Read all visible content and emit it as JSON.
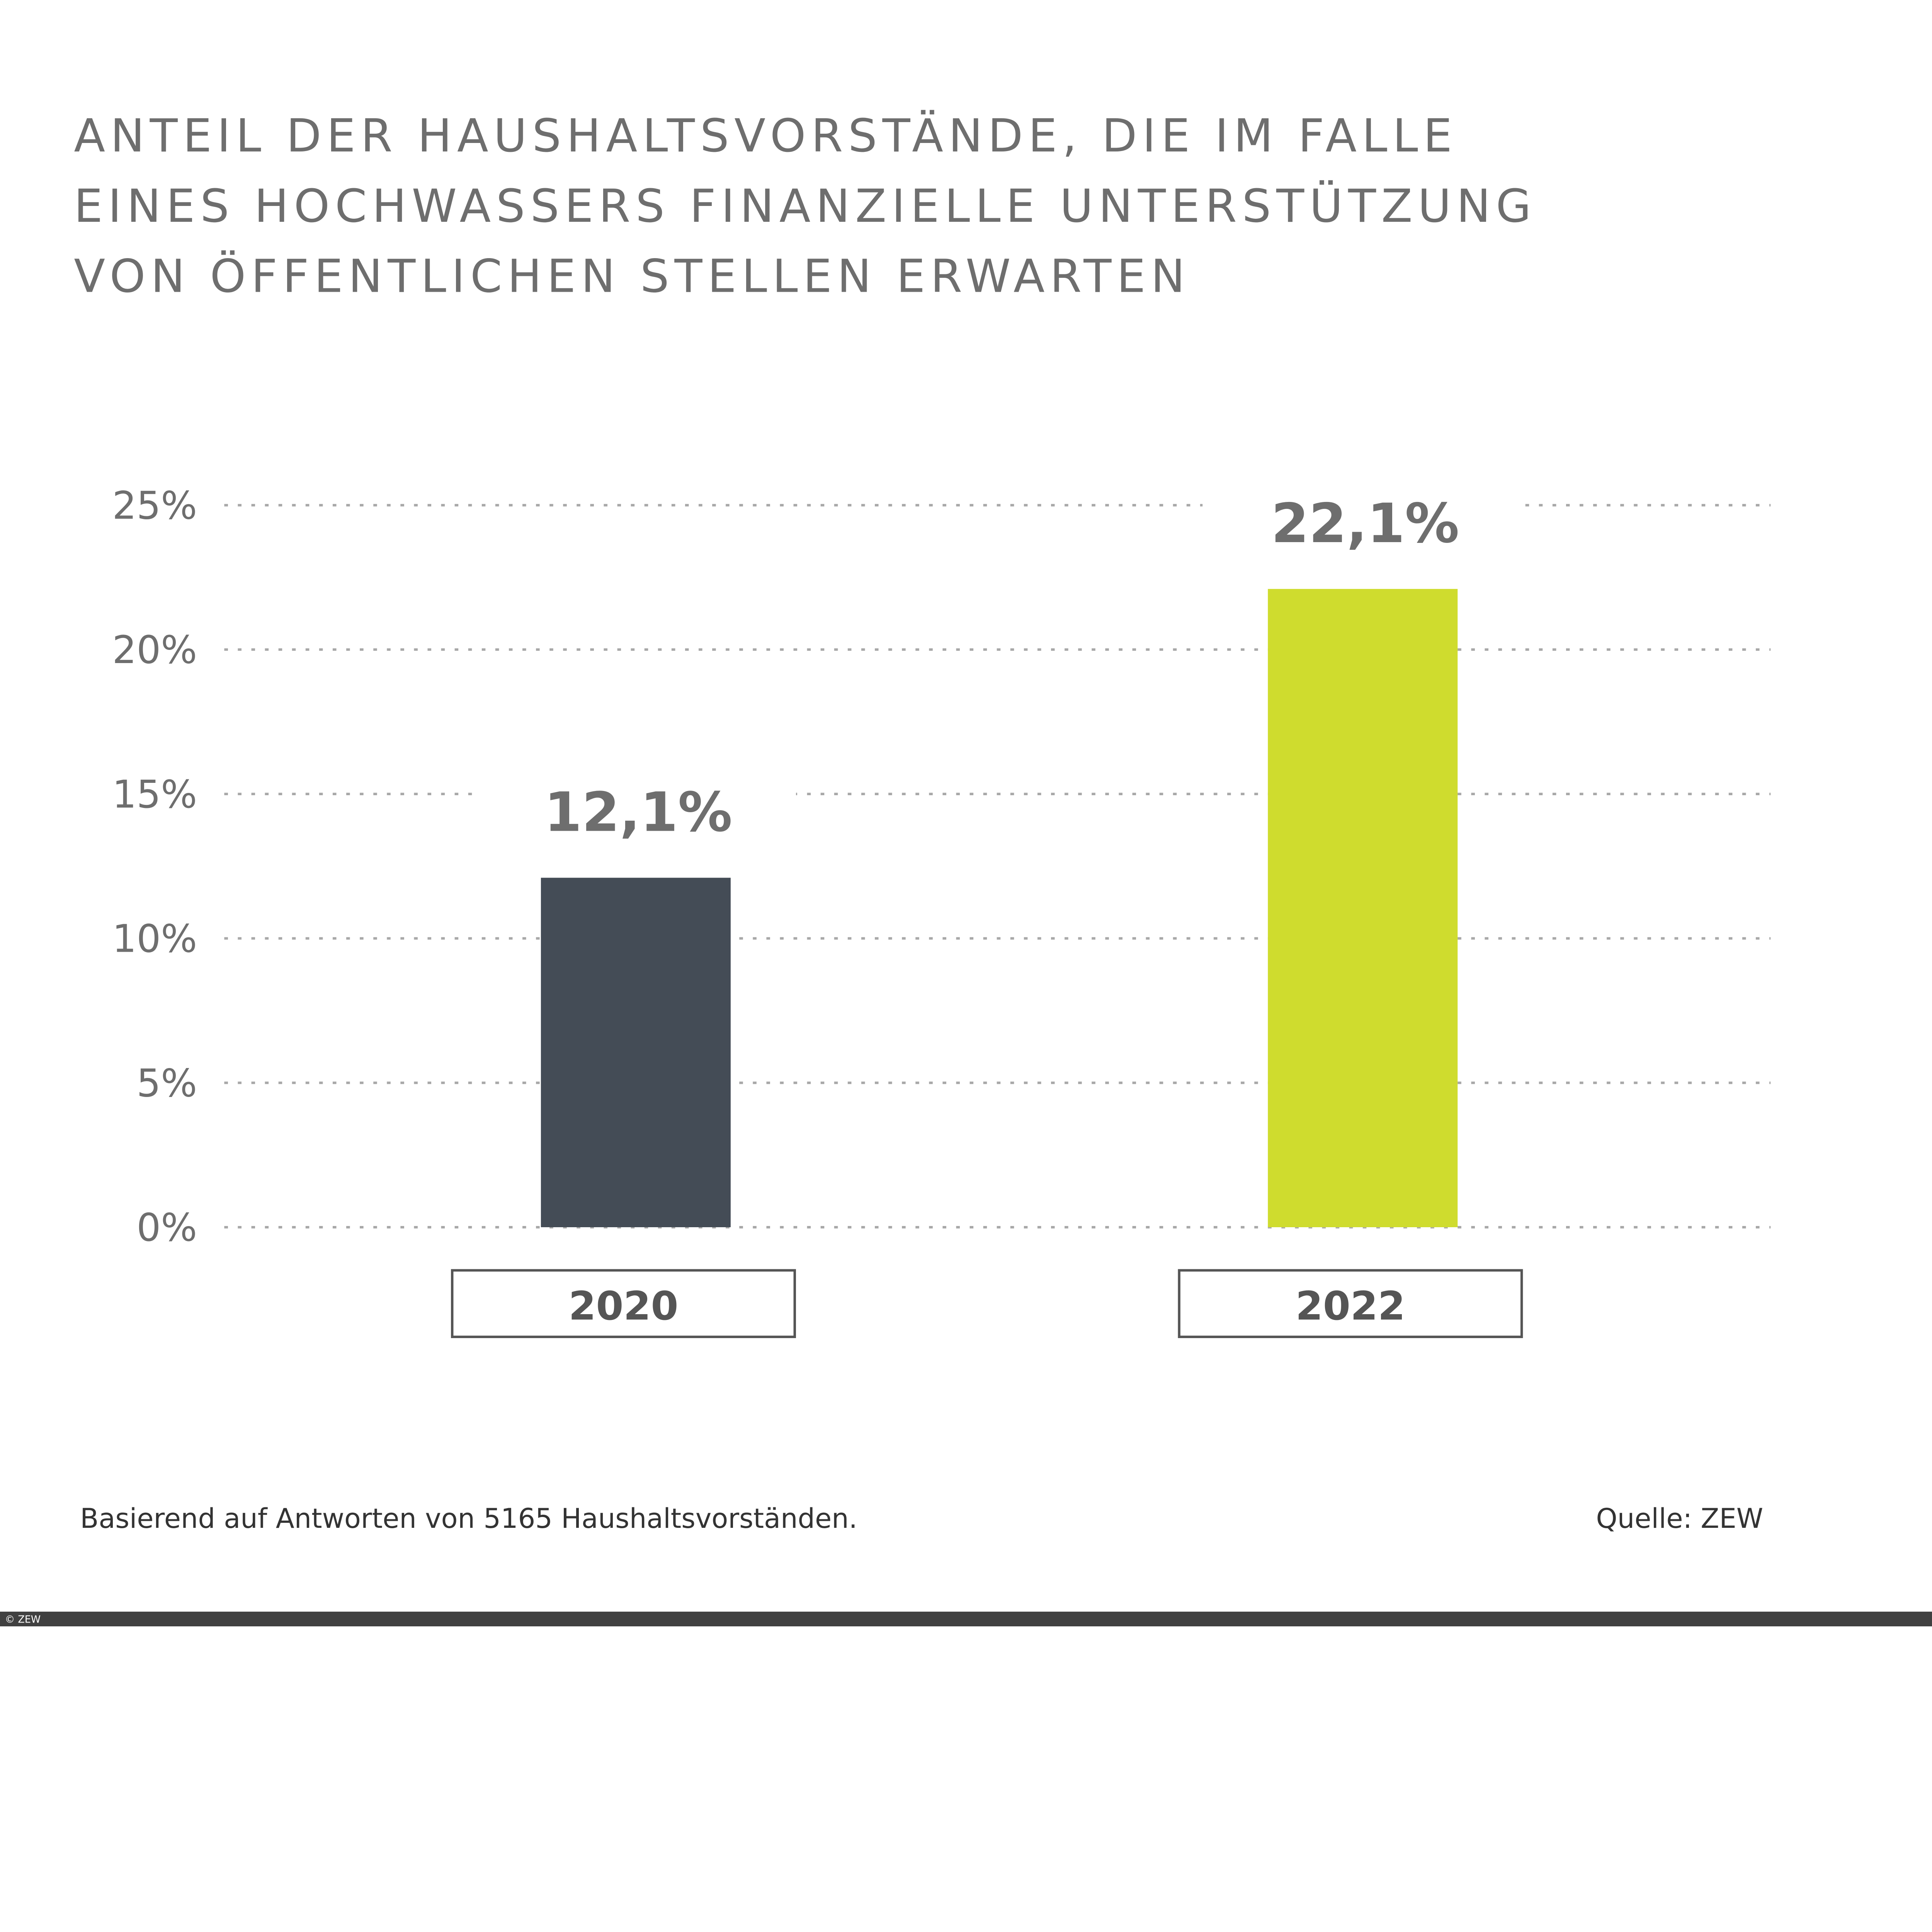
{
  "chart_data": {
    "type": "bar",
    "title_lines": [
      "ANTEIL DER HAUSHALTSVORSTÄNDE, DIE IM FALLE",
      "EINES HOCHWASSERS FINANZIELLE UNTERSTÜTZUNG",
      "VON ÖFFENTLICHEN STELLEN ERWARTEN"
    ],
    "categories": [
      "2020",
      "2022"
    ],
    "values": [
      12.1,
      22.1
    ],
    "data_labels": [
      "12,1%",
      "22,1%"
    ],
    "bar_colors": [
      "#444c56",
      "#cfdc2e"
    ],
    "ylim": [
      0,
      25
    ],
    "yticks": [
      0,
      5,
      10,
      15,
      20,
      25
    ],
    "ytick_labels": [
      "0%",
      "5%",
      "10%",
      "15%",
      "20%",
      "25%"
    ],
    "grid": true,
    "grid_style": "dotted",
    "xlabel": "",
    "ylabel": ""
  },
  "footer": {
    "note": "Basierend auf Antworten von 5165 Haushaltsvorständen.",
    "source": "Quelle: ZEW",
    "copyright": "© ZEW"
  },
  "colors": {
    "text": "#6e6e6e",
    "grid": "#a8a8a8",
    "bottom_bar": "#404040"
  }
}
